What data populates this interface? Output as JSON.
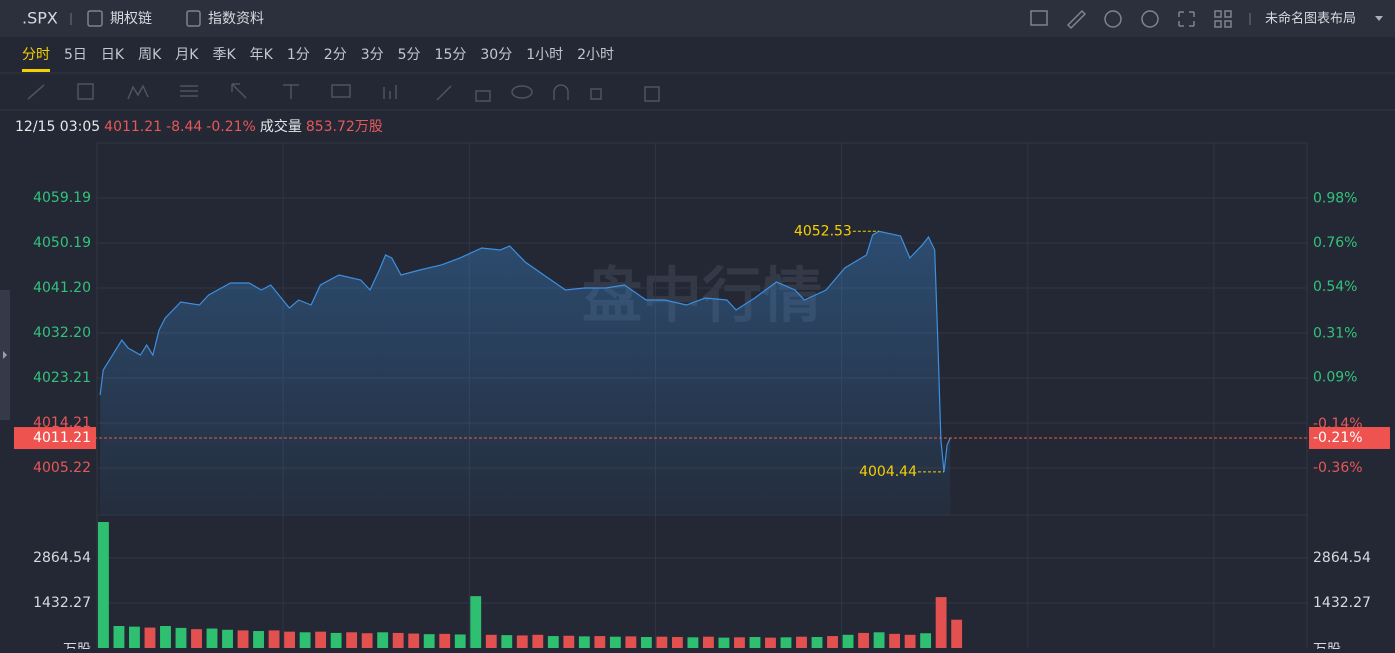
{
  "header": {
    "symbol": ".SPX",
    "buttons": [
      "期权链",
      "指数资料"
    ],
    "layout_name": "未命名图表布局"
  },
  "periods": {
    "items": [
      "分时",
      "5日",
      "日K",
      "周K",
      "月K",
      "季K",
      "年K",
      "1分",
      "2分",
      "3分",
      "5分",
      "15分",
      "30分",
      "1小时",
      "2小时"
    ],
    "active": 0
  },
  "info": {
    "time": "12/15 03:05",
    "price": "4011.21",
    "change": "-8.44",
    "change_pct": "-0.21%",
    "volume_label": "成交量",
    "volume": "853.72万股"
  },
  "watermark": "盘中行情",
  "chart_data": [
    {
      "type": "line",
      "color": "#3d8fe0",
      "x": [
        1,
        2,
        6,
        8,
        10,
        14,
        16,
        18,
        20,
        22,
        27,
        33,
        36,
        43,
        49,
        53,
        56,
        62,
        65,
        69,
        72,
        78,
        85,
        88,
        91,
        93,
        95,
        98,
        104,
        111,
        117,
        124,
        130,
        133,
        138,
        144,
        151,
        157,
        164,
        170,
        177,
        183,
        190,
        196,
        203,
        206,
        212,
        219,
        225,
        228,
        235,
        241,
        248,
        250,
        252,
        259,
        262,
        266,
        268,
        270,
        271,
        272,
        273,
        274,
        275
      ],
      "values": [
        4019.8,
        4024.8,
        4028.8,
        4030.8,
        4029.2,
        4027.8,
        4029.8,
        4027.8,
        4032.8,
        4035.2,
        4038.4,
        4037.8,
        4039.8,
        4042.2,
        4042.2,
        4040.8,
        4041.8,
        4037.2,
        4038.8,
        4037.8,
        4041.8,
        4043.8,
        4042.8,
        4040.8,
        4044.8,
        4047.8,
        4047.2,
        4043.8,
        4044.8,
        4045.8,
        4047.2,
        4049.2,
        4048.8,
        4049.6,
        4046.4,
        4043.8,
        4040.8,
        4041.2,
        4041.2,
        4041.8,
        4038.8,
        4038.8,
        4037.8,
        4039.2,
        4038.8,
        4036.8,
        4039.2,
        4042.4,
        4040.8,
        4038.8,
        4040.8,
        4045.2,
        4047.8,
        4051.8,
        4052.53,
        4051.6,
        4047.2,
        4049.8,
        4051.4,
        4048.8,
        4030.8,
        4010.8,
        4004.44,
        4009.8,
        4011.21
      ],
      "xlim": [
        0,
        390
      ],
      "xticks": [
        0,
        60,
        120,
        180,
        240,
        300,
        360,
        390
      ],
      "ylim": [
        3995.83,
        4070.18
      ],
      "yticks": [
        4005.22,
        4014.21,
        4023.21,
        {
          "value": 4032.2,
          "label": "4032.20"
        },
        {
          "value": 4041.2,
          "label": "4041.20"
        },
        4050.19,
        4059.19
      ],
      "y2lim": [
        -0.593,
        1.257
      ],
      "y2ticks": [
        {
          "value": -0.36,
          "label": "-0.36%"
        },
        {
          "value": -0.14,
          "label": "-0.14%"
        },
        {
          "value": 0.09,
          "label": "0.09%"
        },
        {
          "value": 0.31,
          "label": "0.31%"
        },
        {
          "value": 0.54,
          "label": "0.54%"
        },
        {
          "value": 0.76,
          "label": "0.76%"
        },
        {
          "value": 0.98,
          "label": "0.98%"
        }
      ],
      "up_color": "#33c27c",
      "down_color": "#e8575a",
      "current": 4011.21,
      "current_pct": {
        "value": -0.21,
        "label": "-0.21%"
      },
      "current_color": "#ef5350",
      "annotations": [
        {
          "x": 252,
          "value": 4052.53
        },
        {
          "x": 273,
          "value": 4004.44
        }
      ],
      "annotation_color": "#f5d000",
      "grid": true
    },
    {
      "type": "bar",
      "x": [
        0,
        5,
        10,
        15,
        20,
        25,
        30,
        35,
        40,
        45,
        50,
        55,
        60,
        65,
        70,
        75,
        80,
        85,
        90,
        95,
        100,
        105,
        110,
        115,
        120,
        125,
        130,
        135,
        140,
        145,
        150,
        155,
        160,
        165,
        170,
        175,
        180,
        185,
        190,
        195,
        200,
        205,
        210,
        215,
        220,
        225,
        230,
        235,
        240,
        245,
        250,
        255,
        260,
        265,
        270,
        275
      ],
      "series": [
        {
          "color": "#2fbf71",
          "values": [
            4010,
            700,
            680,
            null,
            700,
            640,
            null,
            620,
            580,
            null,
            540,
            null,
            null,
            500,
            null,
            480,
            null,
            null,
            500,
            null,
            null,
            440,
            null,
            430,
            1650,
            null,
            410,
            null,
            null,
            380,
            null,
            370,
            null,
            360,
            null,
            350,
            null,
            null,
            340,
            null,
            330,
            null,
            350,
            null,
            340,
            null,
            350,
            null,
            420,
            null,
            500,
            null,
            null,
            470,
            null,
            null
          ]
        },
        {
          "color": "#e2504f",
          "values": [
            null,
            null,
            null,
            650,
            null,
            null,
            600,
            null,
            null,
            560,
            null,
            560,
            520,
            null,
            520,
            null,
            500,
            470,
            null,
            480,
            460,
            null,
            450,
            null,
            null,
            420,
            null,
            400,
            420,
            null,
            390,
            null,
            380,
            null,
            370,
            null,
            360,
            350,
            null,
            360,
            null,
            340,
            null,
            330,
            null,
            360,
            null,
            380,
            null,
            480,
            null,
            450,
            420,
            null,
            1620,
            900
          ]
        }
      ],
      "xlim": [
        0,
        390
      ],
      "xticks": [
        0,
        60,
        120,
        180,
        240,
        300,
        360,
        390
      ],
      "ylim": [
        0,
        4233
      ],
      "yticks": [
        1432.27,
        2864.54
      ],
      "y2lim": [
        0,
        4233
      ],
      "y2ticks": [
        1432.27,
        2864.54
      ],
      "unit": "万股",
      "grid": true
    }
  ]
}
